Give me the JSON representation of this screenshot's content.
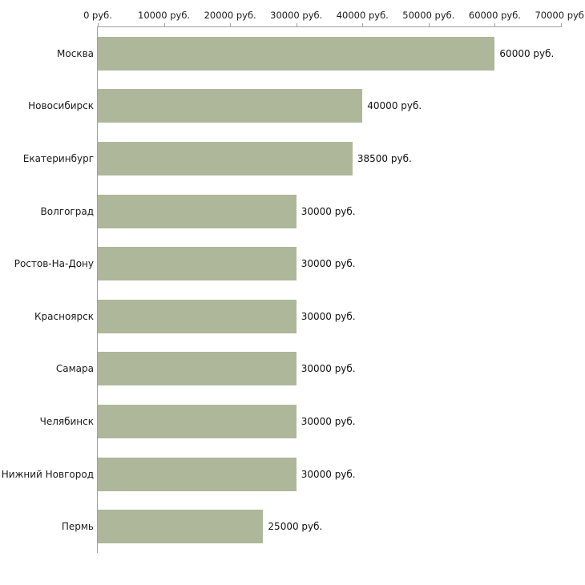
{
  "chart_data": {
    "type": "bar",
    "orientation": "horizontal",
    "title": "",
    "xlabel": "",
    "ylabel": "",
    "categories": [
      "Москва",
      "Новосибирск",
      "Екатеринбург",
      "Волгоград",
      "Ростов-На-Дону",
      "Красноярск",
      "Самара",
      "Челябинск",
      "Нижний Новгород",
      "Пермь"
    ],
    "values": [
      60000,
      40000,
      38500,
      30000,
      30000,
      30000,
      30000,
      30000,
      30000,
      25000
    ],
    "value_labels": [
      "60000 руб.",
      "40000 руб.",
      "38500 руб.",
      "30000 руб.",
      "30000 руб.",
      "30000 руб.",
      "30000 руб.",
      "30000 руб.",
      "30000 руб.",
      "25000 руб."
    ],
    "x_ticks": [
      0,
      10000,
      20000,
      30000,
      40000,
      50000,
      60000,
      70000
    ],
    "x_tick_labels": [
      "0 руб.",
      "10000 руб.",
      "20000 руб.",
      "30000 руб.",
      "40000 руб.",
      "50000 руб.",
      "60000 руб.",
      "70000 руб."
    ],
    "xlim": [
      0,
      70000
    ],
    "grid": false,
    "legend": false,
    "bar_color": "#aeb79a",
    "axis_color": "#a0a0a0",
    "text_color": "#1a1a1a",
    "background_color": "#ffffff"
  }
}
